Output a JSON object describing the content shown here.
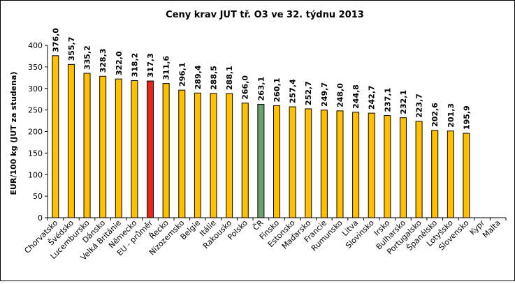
{
  "chart_data": {
    "type": "bar",
    "title": "Ceny krav JUT  tř. O3  ve 32. týdnu 2013",
    "xlabel": "",
    "ylabel": "EUR/100 kg (JUT za studena)",
    "ylim": [
      0,
      400
    ],
    "yticks": [
      "0",
      "50",
      "100",
      "150",
      "200",
      "250",
      "300",
      "350",
      "400"
    ],
    "grid": false,
    "categories": [
      "Chorvatsko",
      "Švédsko",
      "Lucembursko",
      "Dánsko",
      "Velká Británie",
      "Německo",
      "EU - průměr",
      "Řecko",
      "Nizozemsko",
      "Belgie",
      "Itálie",
      "Rakousko",
      "Polsko",
      "ČR",
      "Finsko",
      "Estonsko",
      "Maďarsko",
      "Francie",
      "Rumunsko",
      "Litva",
      "Slovinsko",
      "Irsko",
      "Bulharsko",
      "Portugalsko",
      "Španělsko",
      "Lotyšsko",
      "Slovensko",
      "Kypr",
      "Malta"
    ],
    "values": [
      376.0,
      355.7,
      335.2,
      328.3,
      322.0,
      318.2,
      317.3,
      311.6,
      296.1,
      289.4,
      288.5,
      288.1,
      266.0,
      263.1,
      260.1,
      257.4,
      252.7,
      249.7,
      248.0,
      244.8,
      242.7,
      237.1,
      232.1,
      223.7,
      202.6,
      201.3,
      195.9,
      null,
      null
    ],
    "data_labels": [
      "376,0",
      "355,7",
      "335,2",
      "328,3",
      "322,0",
      "318,2",
      "317,3",
      "311,6",
      "296,1",
      "289,4",
      "288,5",
      "288,1",
      "266,0",
      "263,1",
      "260,1",
      "257,4",
      "252,7",
      "249,7",
      "248,0",
      "244,8",
      "242,7",
      "237,1",
      "232,1",
      "223,7",
      "202,6",
      "201,3",
      "195,9",
      "",
      ""
    ],
    "colors": {
      "default": "#FFC000",
      "EU - průměr": "#E8251A",
      "ČR": "#6F9F6F",
      "outline": "#000000"
    }
  }
}
